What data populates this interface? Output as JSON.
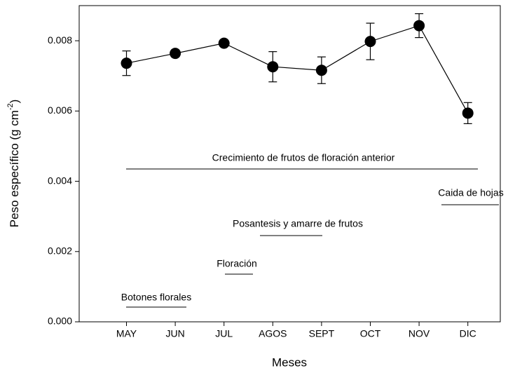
{
  "chart_data": {
    "type": "line",
    "x_label": "Meses",
    "y_label": {
      "text": "Peso específico (g cm",
      "superscript": "-2",
      "end": ")"
    },
    "categories": [
      "MAY",
      "JUN",
      "JUL",
      "AGOS",
      "SEPT",
      "OCT",
      "NOV",
      "DIC"
    ],
    "values": [
      0.00736,
      0.00764,
      0.00793,
      0.00726,
      0.00716,
      0.00798,
      0.00843,
      0.00594
    ],
    "errors": [
      0.00035,
      0.0001,
      7e-05,
      0.00043,
      0.00038,
      0.00052,
      0.00034,
      0.0003
    ],
    "color": "#000000",
    "ylim": [
      0,
      0.009
    ],
    "yticks": [
      {
        "value": 0,
        "label": "0.000"
      },
      0.002,
      0.004,
      0.006,
      0.008
    ],
    "annotations": [
      "Crecimiento de frutos de floración anterior",
      "Caida de hojas",
      "Posantesis y amarre de frutos",
      "Floración",
      "Botones florales"
    ]
  }
}
